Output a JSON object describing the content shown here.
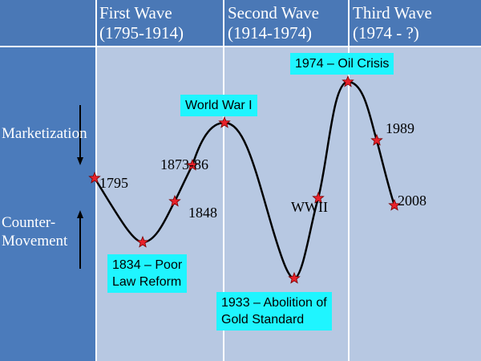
{
  "columns": [
    {
      "title": "First Wave",
      "period": "(1795-1914)"
    },
    {
      "title": "Second Wave",
      "period": "(1914-1974)"
    },
    {
      "title": "Third Wave",
      "period": "(1974 - ?)"
    }
  ],
  "side_labels": {
    "marketization": "Marketization",
    "counter_movement": "Counter-\nMovement"
  },
  "years": {
    "y1795": "1795",
    "y1848": "1848",
    "y1873": "1873-86",
    "wwii": "WWII",
    "y1989": "1989",
    "y2008": "2008"
  },
  "events": {
    "wwi": "World War I",
    "oil": "1974 – Oil Crisis",
    "poor_law": "1834 – Poor\nLaw Reform",
    "gold": "1933 – Abolition of\nGold Standard"
  },
  "colors": {
    "header": "#4a78b6",
    "panel": "#b7c8e2",
    "event_box": "#1ff5ff",
    "star": "#e8212a"
  }
}
